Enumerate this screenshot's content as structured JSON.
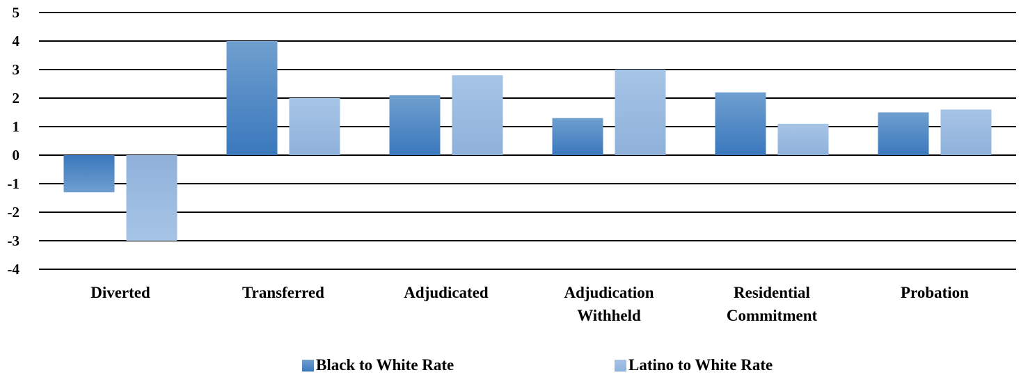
{
  "chart_data": {
    "type": "bar",
    "categories": [
      [
        "Diverted"
      ],
      [
        "Transferred"
      ],
      [
        "Adjudicated"
      ],
      [
        "Adjudication",
        "Withheld"
      ],
      [
        "Residential",
        "Commitment"
      ],
      [
        "Probation"
      ]
    ],
    "series": [
      {
        "name": "Black to White Rate",
        "values": [
          -1.3,
          4.0,
          2.1,
          1.3,
          2.2,
          1.5
        ],
        "color_top": "#6f9fcf",
        "color_bottom": "#3a78bd"
      },
      {
        "name": "Latino to White Rate",
        "values": [
          -3.0,
          2.0,
          2.8,
          3.0,
          1.1,
          1.6
        ],
        "color_top": "#a6c4e6",
        "color_bottom": "#8fb1da"
      }
    ],
    "ylim": [
      -4,
      5
    ],
    "yticks": [
      5,
      4,
      3,
      2,
      1,
      0,
      -1,
      -2,
      -3,
      -4
    ],
    "grid": true,
    "legend_position": "bottom",
    "title": "",
    "xlabel": "",
    "ylabel": ""
  }
}
